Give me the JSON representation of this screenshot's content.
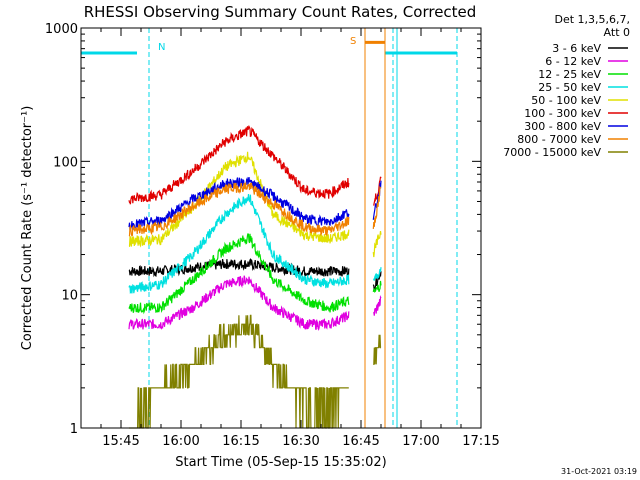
{
  "chart_data": {
    "type": "line",
    "title": "RHESSI Observing Summary Count Rates, Corrected",
    "xlabel": "Start Time (05-Sep-15 15:35:02)",
    "ylabel": "Corrected Count Rate (s⁻¹ detector⁻¹)",
    "yscale": "log",
    "ylim": [
      1,
      1000
    ],
    "xlim_minutes_after_1535": [
      0,
      100
    ],
    "x_ticks": [
      "15:45",
      "16:00",
      "16:15",
      "16:30",
      "16:45",
      "17:00",
      "17:15"
    ],
    "y_ticks": [
      "1",
      "10",
      "100",
      "1000"
    ],
    "legend_header": [
      "Det 1,3,5,6,7,",
      "Att 0"
    ],
    "legend_position": "right",
    "timestamp": "31-Oct-2021 03:19",
    "annotations": {
      "night": "N",
      "saa": "S"
    },
    "data_gap_minutes": [
      [
        67,
        73
      ]
    ],
    "series": [
      {
        "name": "3 - 6 keV",
        "color": "#000000",
        "x": [
          12,
          20,
          28,
          36,
          42,
          48,
          56,
          62,
          67,
          73,
          75
        ],
        "y": [
          15,
          15,
          16,
          17,
          17,
          16,
          15,
          15,
          15,
          11,
          15
        ]
      },
      {
        "name": "6 - 12 keV",
        "color": "#e000e0",
        "x": [
          12,
          20,
          28,
          36,
          42,
          48,
          56,
          62,
          67,
          73,
          75
        ],
        "y": [
          6,
          6,
          8,
          12,
          13,
          8,
          6,
          6,
          7,
          7,
          9
        ]
      },
      {
        "name": "12 - 25 keV",
        "color": "#00e000",
        "x": [
          12,
          20,
          28,
          36,
          42,
          48,
          56,
          62,
          67,
          73,
          75
        ],
        "y": [
          8,
          8,
          13,
          22,
          27,
          13,
          9,
          8,
          9,
          10,
          12
        ]
      },
      {
        "name": "25 - 50 keV",
        "color": "#00e0e0",
        "x": [
          12,
          20,
          28,
          36,
          42,
          48,
          56,
          62,
          67,
          73,
          75
        ],
        "y": [
          11,
          12,
          20,
          40,
          55,
          20,
          13,
          12,
          13,
          12,
          16
        ]
      },
      {
        "name": "50 - 100 keV",
        "color": "#e0e000",
        "x": [
          12,
          20,
          28,
          36,
          42,
          48,
          56,
          62,
          67,
          73,
          75
        ],
        "y": [
          25,
          26,
          45,
          90,
          110,
          40,
          28,
          26,
          29,
          20,
          30
        ]
      },
      {
        "name": "100 - 300 keV",
        "color": "#e00000",
        "x": [
          12,
          20,
          28,
          36,
          42,
          48,
          56,
          62,
          67,
          73,
          75
        ],
        "y": [
          52,
          56,
          85,
          140,
          170,
          110,
          60,
          57,
          70,
          45,
          72
        ]
      },
      {
        "name": "300 - 800 keV",
        "color": "#0000e0",
        "x": [
          12,
          20,
          28,
          36,
          42,
          48,
          56,
          62,
          67,
          73,
          75
        ],
        "y": [
          33,
          36,
          52,
          68,
          70,
          55,
          37,
          35,
          42,
          35,
          70
        ]
      },
      {
        "name": "800 - 7000 keV",
        "color": "#f08000",
        "x": [
          12,
          20,
          28,
          36,
          42,
          48,
          56,
          62,
          67,
          73,
          75
        ],
        "y": [
          30,
          32,
          46,
          62,
          65,
          48,
          32,
          30,
          36,
          30,
          65
        ]
      },
      {
        "name": "7000 - 15000 keV",
        "color": "#808000",
        "x": [
          12,
          16,
          20,
          28,
          36,
          42,
          48,
          56,
          62,
          67,
          73,
          75
        ],
        "y": [
          1,
          1.5,
          2,
          3,
          5,
          6,
          3,
          1.5,
          1.5,
          2,
          3,
          4.5
        ]
      }
    ]
  }
}
